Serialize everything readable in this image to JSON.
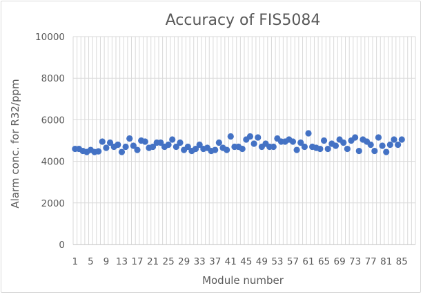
{
  "chart_data": {
    "type": "scatter",
    "title": "Accuracy of FIS5084",
    "xlabel": "Module number",
    "ylabel": "Alarm conc. for R32/ppm",
    "xlim": [
      1,
      88
    ],
    "ylim": [
      0,
      10000
    ],
    "y_ticks": [
      0,
      2000,
      4000,
      6000,
      8000,
      10000
    ],
    "x_tick_labels": [
      1,
      5,
      9,
      13,
      17,
      21,
      25,
      29,
      33,
      37,
      41,
      45,
      49,
      53,
      57,
      61,
      65,
      69,
      73,
      77,
      81,
      85
    ],
    "x_label_step": 4,
    "x_categories": 88,
    "grid": "vertical and horizontal",
    "marker_color": "#4472c4",
    "legend": "none",
    "series": [
      {
        "values": [
          4600,
          4600,
          4500,
          4450,
          4550,
          4450,
          4480,
          4950,
          4650,
          4900,
          4700,
          4800,
          4450,
          4700,
          5100,
          4750,
          4550,
          5000,
          4950,
          4650,
          4700,
          4900,
          4900,
          4700,
          4800,
          5050,
          4700,
          4900,
          4550,
          4700,
          4500,
          4600,
          4800,
          4600,
          4650,
          4500,
          4550,
          4900,
          4650,
          4550,
          5200,
          4700,
          4700,
          4600,
          5050,
          5200,
          4850,
          5150,
          4700,
          4850,
          4700,
          4700,
          5100,
          4950,
          4950,
          5050,
          4950,
          4550,
          4900,
          4700,
          5350,
          4700,
          4650,
          4600,
          5000,
          4600,
          4850,
          4750,
          5050,
          4900,
          4600,
          5000,
          5150,
          4500,
          5050,
          4950,
          4800,
          4500,
          5150,
          4750,
          4450,
          4800,
          5050,
          4800,
          5050
        ]
      }
    ]
  }
}
